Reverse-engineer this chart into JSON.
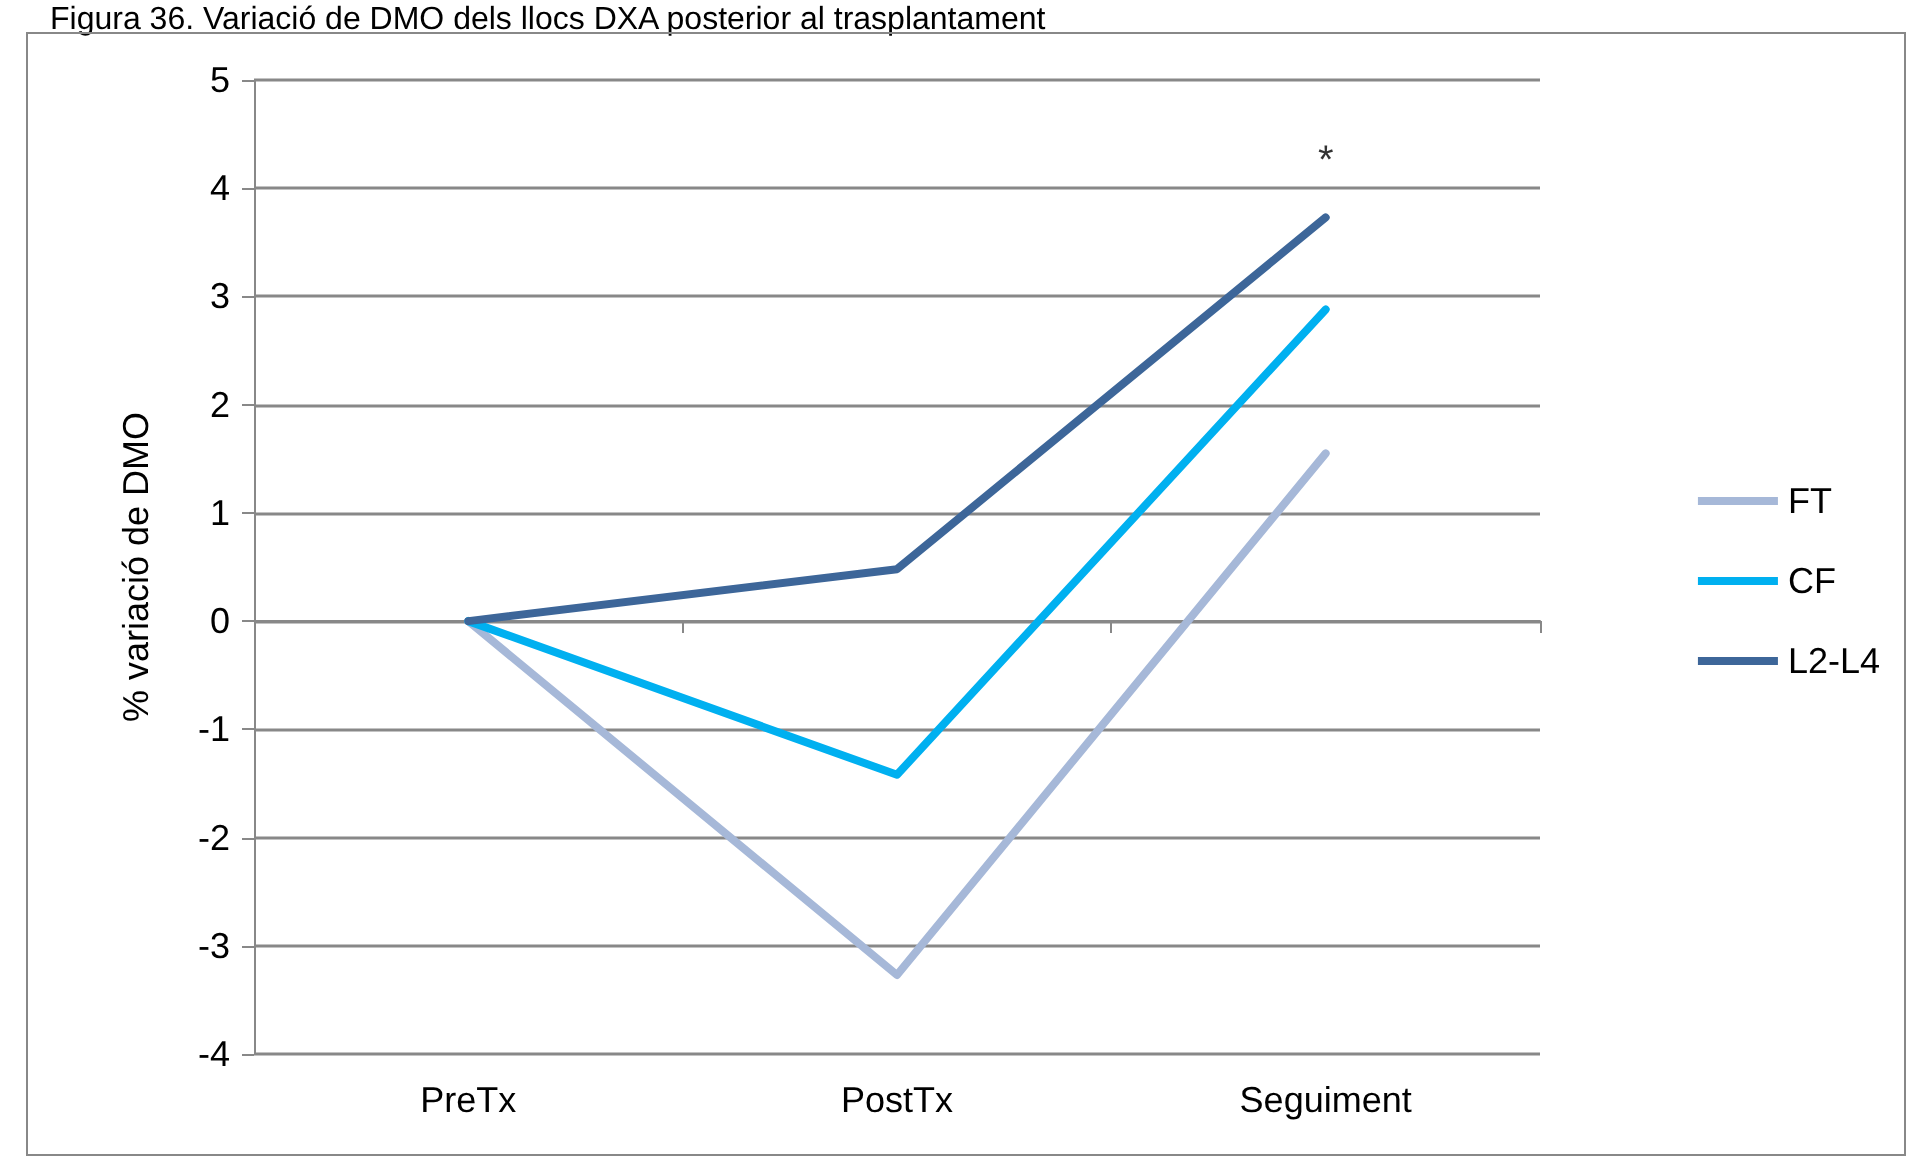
{
  "chart_data": {
    "type": "line",
    "title": "Figura 36. Variació de DMO dels llocs DXA posterior al trasplantament",
    "ylabel": "% variació de DMO",
    "categories": [
      "PreTx",
      "PostTx",
      "Seguiment"
    ],
    "series": [
      {
        "name": "FT",
        "color": "#a6b8d8",
        "values": [
          0,
          -3.27,
          1.55
        ]
      },
      {
        "name": "CF",
        "color": "#00b0f0",
        "values": [
          0,
          -1.42,
          2.88
        ]
      },
      {
        "name": "L2-L4",
        "color": "#3d6699",
        "values": [
          0,
          0.48,
          3.73
        ]
      }
    ],
    "ylim": [
      -4,
      5
    ],
    "yticks": [
      -4,
      -3,
      -2,
      -1,
      0,
      1,
      2,
      3,
      4,
      5
    ],
    "grid": "y",
    "legend": "right",
    "marker": "none",
    "line_style": "solid",
    "annotations": [
      {
        "text": "*",
        "x": "Seguiment",
        "y": 3.73
      }
    ]
  }
}
